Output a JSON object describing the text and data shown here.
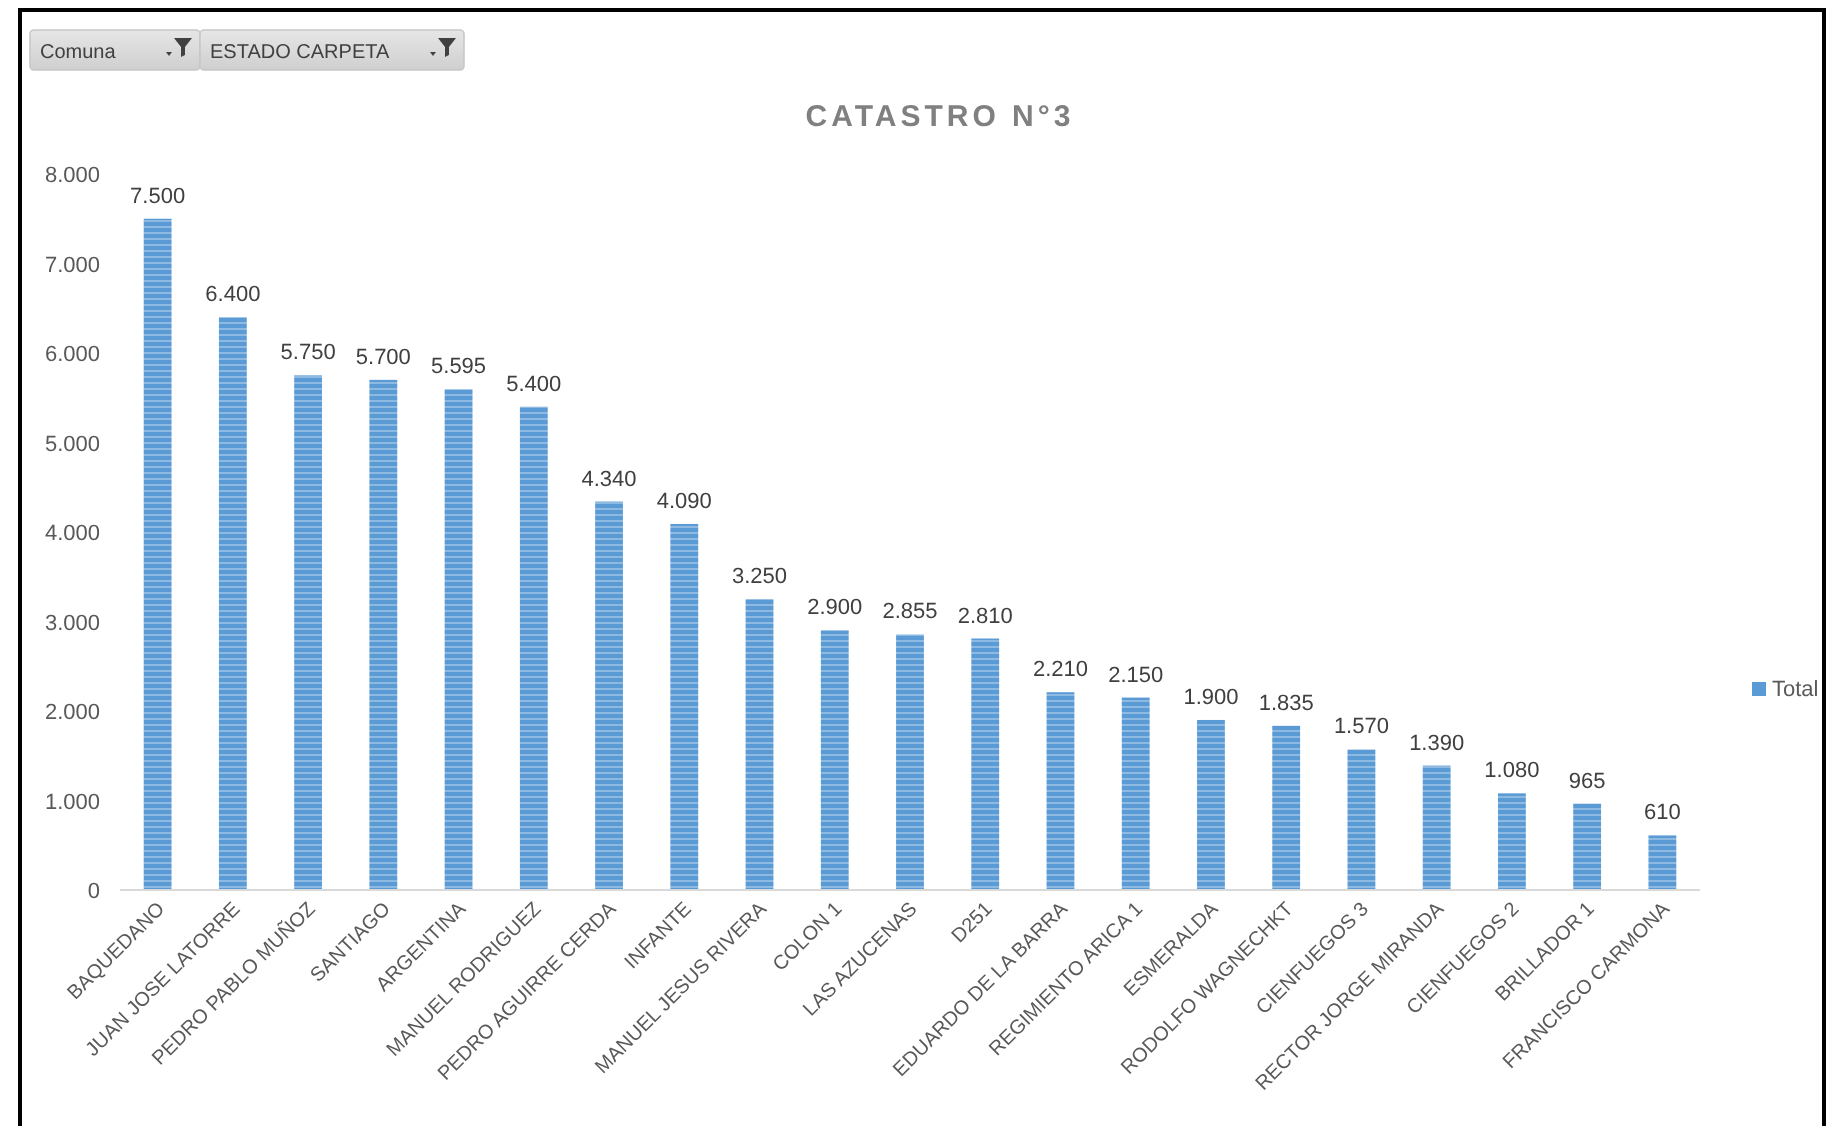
{
  "chart_data": {
    "type": "bar",
    "title": "CATASTRO N°3",
    "annotations": [
      "Comuna",
      "ESTADO CARPETA"
    ],
    "categories": [
      "BAQUEDANO",
      "JUAN JOSE LATORRE",
      "PEDRO PABLO MUÑOZ",
      "SANTIAGO",
      "ARGENTINA",
      "MANUEL RODRIGUEZ",
      "PEDRO AGUIRRE CERDA",
      "INFANTE",
      "MANUEL JESUS RIVERA",
      "COLON 1",
      "LAS AZUCENAS",
      "D251",
      "EDUARDO DE LA BARRA",
      "REGIMIENTO ARICA 1",
      "ESMERALDA",
      "RODOLFO WAGNECHKT",
      "CIENFUEGOS 3",
      "RECTOR JORGE MIRANDA",
      "CIENFUEGOS 2",
      "BRILLADOR 1",
      "FRANCISCO CARMONA"
    ],
    "series": [
      {
        "name": "Total",
        "color": "#5b9bd5",
        "values": [
          7500,
          6400,
          5750,
          5700,
          5595,
          5400,
          4340,
          4090,
          3250,
          2900,
          2855,
          2810,
          2210,
          2150,
          1900,
          1835,
          1570,
          1390,
          1080,
          965,
          610
        ],
        "value_labels": [
          "7.500",
          "6.400",
          "5.750",
          "5.700",
          "5.595",
          "5.400",
          "4.340",
          "4.090",
          "3.250",
          "2.900",
          "2.855",
          "2.810",
          "2.210",
          "2.150",
          "1.900",
          "1.835",
          "1.570",
          "1.390",
          "1.080",
          "965",
          "610"
        ]
      }
    ],
    "ylim": [
      0,
      8000
    ],
    "yticks": [
      0,
      {
        "value": 1000,
        "label": "1.000"
      },
      {
        "value": 2000,
        "label": "2.000"
      },
      {
        "value": 3000,
        "label": "3.000"
      },
      {
        "value": 4000,
        "label": "4.000"
      },
      {
        "value": 5000,
        "label": "5.000"
      },
      {
        "value": 6000,
        "label": "6.000"
      },
      {
        "value": 7000,
        "label": "7.000"
      },
      {
        "value": 8000,
        "label": "8.000"
      }
    ],
    "legend": "right"
  }
}
